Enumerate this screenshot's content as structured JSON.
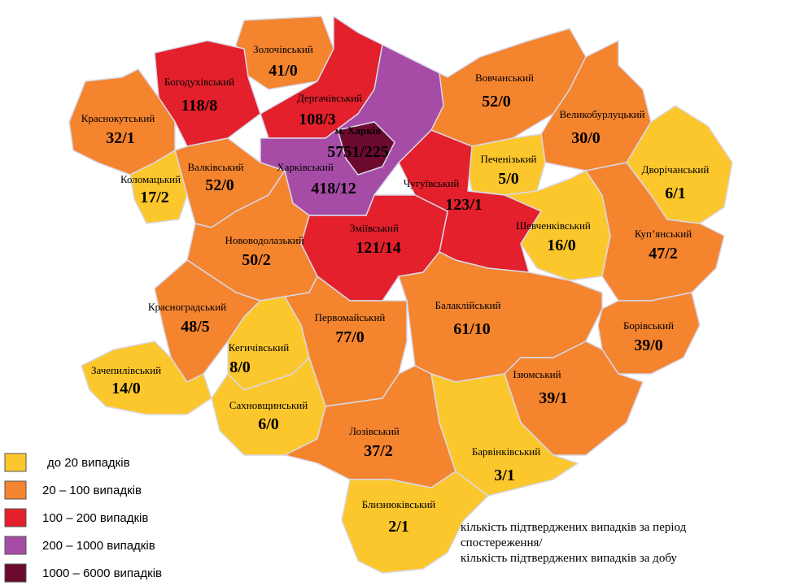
{
  "regions": [
    {
      "name": "Золочівський",
      "value": "41/0",
      "color": "#f5842f"
    },
    {
      "name": "Богодухівський",
      "value": "118/8",
      "color": "#e3202b"
    },
    {
      "name": "Дергачівський",
      "value": "108/3",
      "color": "#e3202b"
    },
    {
      "name": "Вовчанський",
      "value": "52/0",
      "color": "#f5842f"
    },
    {
      "name": "Харківський",
      "value": "418/12",
      "color": "#a64ca6"
    },
    {
      "name": "м. Харків",
      "value": "5751/225",
      "color": "#6b0a2e"
    },
    {
      "name": "Великобурлуцький",
      "value": "30/0",
      "color": "#f5842f"
    },
    {
      "name": "Краснокутський",
      "value": "32/1",
      "color": "#f5842f"
    },
    {
      "name": "Печенізький",
      "value": "5/0",
      "color": "#fcc72c"
    },
    {
      "name": "Дворічанський",
      "value": "6/1",
      "color": "#fcc72c"
    },
    {
      "name": "Чугуївський",
      "value": "123/1",
      "color": "#e3202b"
    },
    {
      "name": "Валківський",
      "value": "52/0",
      "color": "#f5842f"
    },
    {
      "name": "Коломацький",
      "value": "17/2",
      "color": "#fcc72c"
    },
    {
      "name": "Зміївський",
      "value": "121/14",
      "color": "#e3202b"
    },
    {
      "name": "Шевченківський",
      "value": "16/0",
      "color": "#fcc72c"
    },
    {
      "name": "Куп’янський",
      "value": "47/2",
      "color": "#f5842f"
    },
    {
      "name": "Нововодолазький",
      "value": "50/2",
      "color": "#f5842f"
    },
    {
      "name": "Красноградський",
      "value": "48/5",
      "color": "#f5842f"
    },
    {
      "name": "Первомайський",
      "value": "77/0",
      "color": "#f5842f"
    },
    {
      "name": "Балаклійський",
      "value": "61/10",
      "color": "#f5842f"
    },
    {
      "name": "Борівський",
      "value": "39/0",
      "color": "#f5842f"
    },
    {
      "name": "Кегичівський",
      "value": "8/0",
      "color": "#fcc72c"
    },
    {
      "name": "Зачепилівський",
      "value": "14/0",
      "color": "#fcc72c"
    },
    {
      "name": "Ізюмський",
      "value": "39/1",
      "color": "#f5842f"
    },
    {
      "name": "Сахновщинський",
      "value": "6/0",
      "color": "#fcc72c"
    },
    {
      "name": "Лозівський",
      "value": "37/2",
      "color": "#f5842f"
    },
    {
      "name": "Барвінківський",
      "value": "3/1",
      "color": "#fcc72c"
    },
    {
      "name": "Близнюківський",
      "value": "2/1",
      "color": "#fcc72c"
    }
  ],
  "legend": [
    {
      "label": "до 20  випадків",
      "color": "#fcc72c"
    },
    {
      "label": "20 – 100  випадків",
      "color": "#f5842f"
    },
    {
      "label": "100 – 200  випадків",
      "color": "#e3202b"
    },
    {
      "label": "200 – 1000  випадків",
      "color": "#a64ca6"
    },
    {
      "label": "1000 – 6000  випадків",
      "color": "#6b0a2e"
    }
  ],
  "note": [
    "кількість підтверджених випадків за період",
    "спостереження/",
    "кількість підтверджених випадків за добу"
  ]
}
